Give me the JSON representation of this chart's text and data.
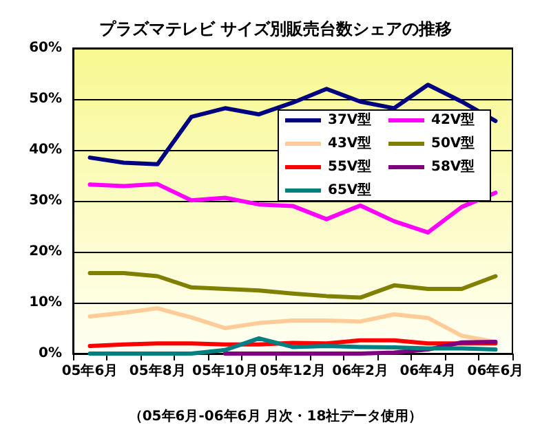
{
  "chart_data": {
    "type": "line",
    "title": "プラズマテレビ サイズ別販売台数シェアの推移",
    "categories": [
      "05年6月",
      null,
      "05年8月",
      null,
      "05年10月",
      null,
      "05年12月",
      null,
      "06年2月",
      null,
      "06年4月",
      null,
      "06年6月"
    ],
    "series": [
      {
        "name": "37V型",
        "color": "#000080",
        "values": [
          38.5,
          37.5,
          37.2,
          46.5,
          48.2,
          47,
          49.3,
          52,
          49.5,
          48.2,
          52.8,
          49.5,
          45.7
        ]
      },
      {
        "name": "42V型",
        "color": "#ff00ff",
        "values": [
          33.2,
          32.9,
          33.3,
          30.1,
          30.6,
          29.3,
          29,
          26.4,
          29.1,
          26,
          23.8,
          28.8,
          31.6
        ]
      },
      {
        "name": "43V型",
        "color": "#ffcc99",
        "values": [
          7.3,
          8,
          8.9,
          7.1,
          5,
          6,
          6.5,
          6.5,
          6.3,
          7.7,
          7,
          3.5,
          2.3
        ]
      },
      {
        "name": "50V型",
        "color": "#808000",
        "values": [
          15.8,
          15.8,
          15.2,
          13,
          12.7,
          12.4,
          11.8,
          11.3,
          11,
          13.4,
          12.7,
          12.7,
          15.2
        ]
      },
      {
        "name": "55V型",
        "color": "#ff0000",
        "values": [
          1.5,
          1.8,
          2,
          2,
          1.8,
          1.8,
          2.1,
          2,
          2.6,
          2.6,
          2,
          2,
          2
        ]
      },
      {
        "name": "58V型",
        "color": "#800080",
        "values": [
          null,
          null,
          null,
          null,
          0,
          0,
          0,
          0,
          0,
          0.2,
          0.8,
          2.2,
          2.3
        ]
      },
      {
        "name": "65V型",
        "color": "#008080",
        "values": [
          0,
          0,
          0,
          0,
          0.7,
          3,
          1.3,
          1.5,
          1.3,
          1.2,
          1,
          1,
          0.8
        ]
      }
    ],
    "ylim": [
      0,
      60
    ],
    "yticks": [
      {
        "value": 0,
        "label": "0%"
      },
      {
        "value": 10,
        "label": "10%"
      },
      {
        "value": 20,
        "label": "20%"
      },
      {
        "value": 30,
        "label": "30%"
      },
      {
        "value": 40,
        "label": "40%"
      },
      {
        "value": 50,
        "label": "50%"
      },
      {
        "value": 60,
        "label": "60%"
      }
    ],
    "grid": "y",
    "legend": "top right",
    "marker": "none",
    "line_style": "solid",
    "annotations": [
      "（05年6月-06年6月 月次・18社データ使用）"
    ]
  }
}
